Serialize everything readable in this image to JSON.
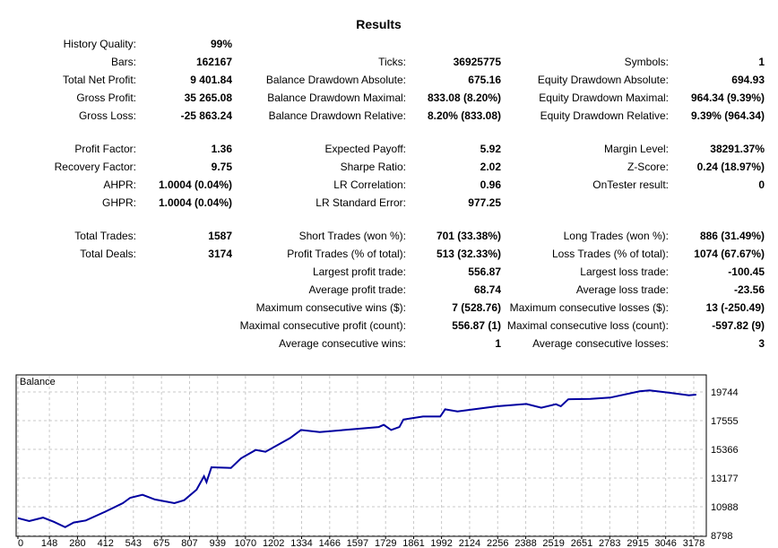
{
  "title": "Results",
  "groups": [
    [
      [
        [
          "History Quality:",
          "99%"
        ],
        null,
        null
      ],
      [
        [
          "Bars:",
          "162167"
        ],
        [
          "Ticks:",
          "36925775"
        ],
        [
          "Symbols:",
          "1"
        ]
      ],
      [
        [
          "Total Net Profit:",
          "9 401.84"
        ],
        [
          "Balance Drawdown Absolute:",
          "675.16"
        ],
        [
          "Equity Drawdown Absolute:",
          "694.93"
        ]
      ],
      [
        [
          "Gross Profit:",
          "35 265.08"
        ],
        [
          "Balance Drawdown Maximal:",
          "833.08 (8.20%)"
        ],
        [
          "Equity Drawdown Maximal:",
          "964.34 (9.39%)"
        ]
      ],
      [
        [
          "Gross Loss:",
          "-25 863.24"
        ],
        [
          "Balance Drawdown Relative:",
          "8.20% (833.08)"
        ],
        [
          "Equity Drawdown Relative:",
          "9.39% (964.34)"
        ]
      ]
    ],
    [
      [
        [
          "Profit Factor:",
          "1.36"
        ],
        [
          "Expected Payoff:",
          "5.92"
        ],
        [
          "Margin Level:",
          "38291.37%"
        ]
      ],
      [
        [
          "Recovery Factor:",
          "9.75"
        ],
        [
          "Sharpe Ratio:",
          "2.02"
        ],
        [
          "Z-Score:",
          "0.24 (18.97%)"
        ]
      ],
      [
        [
          "AHPR:",
          "1.0004 (0.04%)"
        ],
        [
          "LR Correlation:",
          "0.96"
        ],
        [
          "OnTester result:",
          "0"
        ]
      ],
      [
        [
          "GHPR:",
          "1.0004 (0.04%)"
        ],
        [
          "LR Standard Error:",
          "977.25"
        ],
        null
      ]
    ],
    [
      [
        [
          "Total Trades:",
          "1587"
        ],
        [
          "Short Trades (won %):",
          "701 (33.38%)"
        ],
        [
          "Long Trades (won %):",
          "886 (31.49%)"
        ]
      ],
      [
        [
          "Total Deals:",
          "3174"
        ],
        [
          "Profit Trades (% of total):",
          "513 (32.33%)"
        ],
        [
          "Loss Trades (% of total):",
          "1074 (67.67%)"
        ]
      ],
      [
        null,
        [
          "Largest profit trade:",
          "556.87"
        ],
        [
          "Largest loss trade:",
          "-100.45"
        ]
      ],
      [
        null,
        [
          "Average profit trade:",
          "68.74"
        ],
        [
          "Average loss trade:",
          "-23.56"
        ]
      ],
      [
        null,
        [
          "Maximum consecutive wins ($):",
          "7 (528.76)"
        ],
        [
          "Maximum consecutive losses ($):",
          "13 (-250.49)"
        ]
      ],
      [
        null,
        [
          "Maximal consecutive profit (count):",
          "556.87 (1)"
        ],
        [
          "Maximal consecutive loss (count):",
          "-597.82 (9)"
        ]
      ],
      [
        null,
        [
          "Average consecutive wins:",
          "1"
        ],
        [
          "Average consecutive losses:",
          "3"
        ]
      ]
    ]
  ],
  "chart_data": {
    "type": "line",
    "title": "Balance",
    "line_color": "#0000a0",
    "xlim": [
      0,
      3178
    ],
    "ylim": [
      8798,
      19744
    ],
    "x_ticks": [
      0,
      148,
      280,
      412,
      543,
      675,
      807,
      939,
      1070,
      1202,
      1334,
      1466,
      1597,
      1729,
      1861,
      1992,
      2124,
      2256,
      2388,
      2519,
      2651,
      2783,
      2915,
      3046,
      3178
    ],
    "y_ticks": [
      8798,
      10988,
      13177,
      15366,
      17555,
      19744
    ],
    "grid": true,
    "series": [
      {
        "name": "Balance",
        "x": [
          0,
          53,
          118,
          169,
          222,
          262,
          319,
          412,
          493,
          528,
          586,
          644,
          736,
          782,
          840,
          875,
          887,
          910,
          1002,
          1049,
          1118,
          1164,
          1280,
          1331,
          1419,
          1535,
          1697,
          1720,
          1755,
          1794,
          1813,
          1905,
          1986,
          2009,
          2067,
          2252,
          2391,
          2461,
          2530,
          2553,
          2588,
          2692,
          2785,
          2924,
          2970,
          3063,
          3155,
          3190
        ],
        "y": [
          10120,
          9890,
          10160,
          9840,
          9430,
          9780,
          9940,
          10620,
          11260,
          11670,
          11900,
          11540,
          11260,
          11490,
          12290,
          13310,
          12860,
          14000,
          13950,
          14680,
          15320,
          15180,
          16230,
          16840,
          16680,
          16840,
          17070,
          17230,
          16840,
          17070,
          17640,
          17870,
          17870,
          18420,
          18260,
          18650,
          18830,
          18540,
          18810,
          18650,
          19180,
          19220,
          19310,
          19790,
          19860,
          19680,
          19490,
          19540
        ]
      }
    ]
  }
}
